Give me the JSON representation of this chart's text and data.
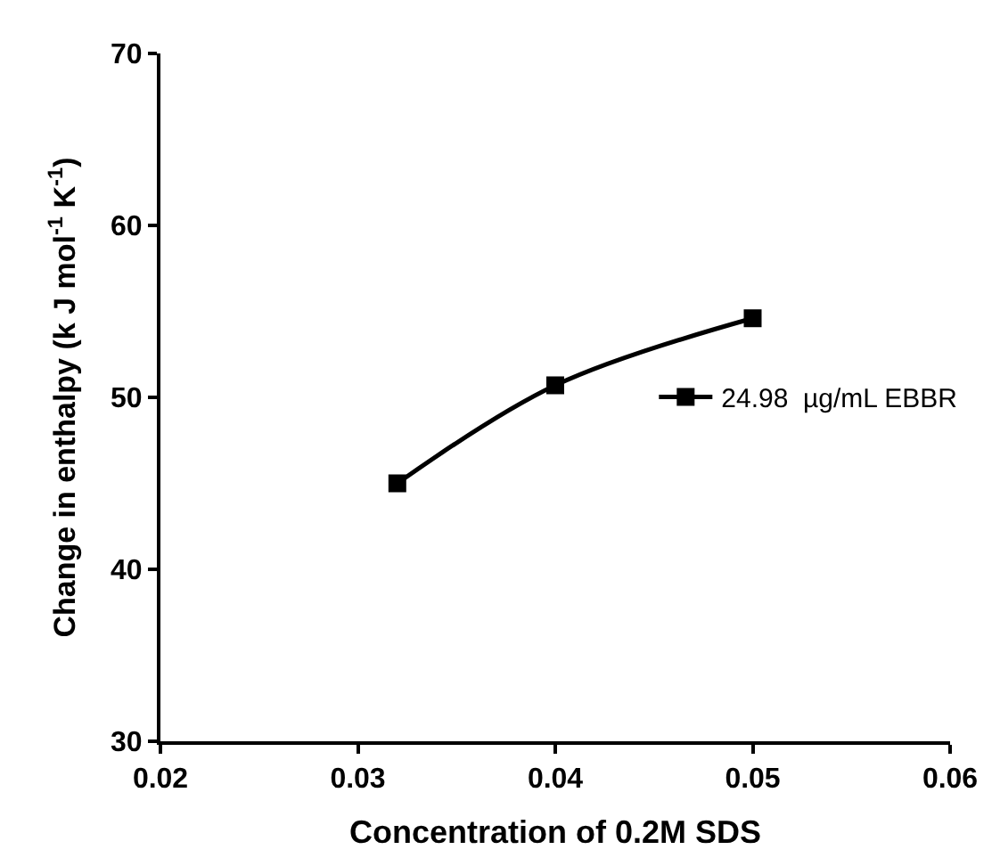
{
  "chart_data": {
    "type": "line",
    "xlabel": "Concentration of 0.2M SDS",
    "ylabel": "Change in enthalpy (k J mol$^{-1}$ K$^{-1}$)",
    "x": [
      0.032,
      0.04,
      0.05
    ],
    "series": [
      {
        "name": "24.98  µg/mL EBBR",
        "color": "#000000",
        "values": [
          45.0,
          50.7,
          54.6
        ]
      }
    ],
    "xlim": [
      0.02,
      0.06
    ],
    "xticks": [
      {
        "value": 0.02,
        "label": "0.02"
      },
      {
        "value": 0.03,
        "label": "0.03"
      },
      {
        "value": 0.04,
        "label": "0.04"
      },
      {
        "value": 0.05,
        "label": "0.05"
      },
      {
        "value": 0.06,
        "label": "0.06"
      }
    ],
    "ylim": [
      30,
      70
    ],
    "yticks": [
      30,
      40,
      50,
      60,
      70
    ],
    "legend": "right",
    "marker": "square",
    "line_style": "solid"
  }
}
